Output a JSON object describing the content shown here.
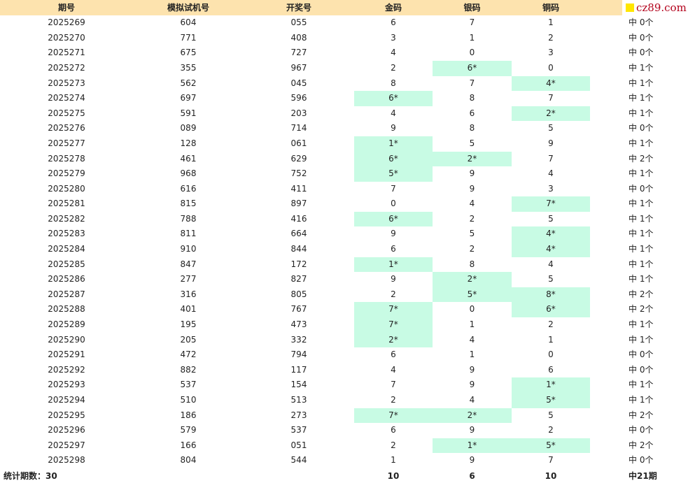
{
  "header": {
    "columns": [
      "期号",
      "模拟试机号",
      "开奖号",
      "金码",
      "银码",
      "铜码"
    ],
    "logo": "cz89.com"
  },
  "table": {
    "rows": [
      [
        "2025269",
        "604",
        "055",
        "6",
        "7",
        "1",
        "中 0个"
      ],
      [
        "2025270",
        "771",
        "408",
        "3",
        "1",
        "2",
        "中 0个"
      ],
      [
        "2025271",
        "675",
        "727",
        "4",
        "0",
        "3",
        "中 0个"
      ],
      [
        "2025272",
        "355",
        "967",
        "2",
        "6*",
        "0",
        "中 1个"
      ],
      [
        "2025273",
        "562",
        "045",
        "8",
        "7",
        "4*",
        "中 1个"
      ],
      [
        "2025274",
        "697",
        "596",
        "6*",
        "8",
        "7",
        "中 1个"
      ],
      [
        "2025275",
        "591",
        "203",
        "4",
        "6",
        "2*",
        "中 1个"
      ],
      [
        "2025276",
        "089",
        "714",
        "9",
        "8",
        "5",
        "中 0个"
      ],
      [
        "2025277",
        "128",
        "061",
        "1*",
        "5",
        "9",
        "中 1个"
      ],
      [
        "2025278",
        "461",
        "629",
        "6*",
        "2*",
        "7",
        "中 2个"
      ],
      [
        "2025279",
        "968",
        "752",
        "5*",
        "9",
        "4",
        "中 1个"
      ],
      [
        "2025280",
        "616",
        "411",
        "7",
        "9",
        "3",
        "中 0个"
      ],
      [
        "2025281",
        "815",
        "897",
        "0",
        "4",
        "7*",
        "中 1个"
      ],
      [
        "2025282",
        "788",
        "416",
        "6*",
        "2",
        "5",
        "中 1个"
      ],
      [
        "2025283",
        "811",
        "664",
        "9",
        "5",
        "4*",
        "中 1个"
      ],
      [
        "2025284",
        "910",
        "844",
        "6",
        "2",
        "4*",
        "中 1个"
      ],
      [
        "2025285",
        "847",
        "172",
        "1*",
        "8",
        "4",
        "中 1个"
      ],
      [
        "2025286",
        "277",
        "827",
        "9",
        "2*",
        "5",
        "中 1个"
      ],
      [
        "2025287",
        "316",
        "805",
        "2",
        "5*",
        "8*",
        "中 2个"
      ],
      [
        "2025288",
        "401",
        "767",
        "7*",
        "0",
        "6*",
        "中 2个"
      ],
      [
        "2025289",
        "195",
        "473",
        "7*",
        "1",
        "2",
        "中 1个"
      ],
      [
        "2025290",
        "205",
        "332",
        "2*",
        "4",
        "1",
        "中 1个"
      ],
      [
        "2025291",
        "472",
        "794",
        "6",
        "1",
        "0",
        "中 0个"
      ],
      [
        "2025292",
        "882",
        "117",
        "4",
        "9",
        "6",
        "中 0个"
      ],
      [
        "2025293",
        "537",
        "154",
        "7",
        "9",
        "1*",
        "中 1个"
      ],
      [
        "2025294",
        "510",
        "513",
        "2",
        "4",
        "5*",
        "中 1个"
      ],
      [
        "2025295",
        "186",
        "273",
        "7*",
        "2*",
        "5",
        "中 2个"
      ],
      [
        "2025296",
        "579",
        "537",
        "6",
        "9",
        "2",
        "中 0个"
      ],
      [
        "2025297",
        "166",
        "051",
        "2",
        "1*",
        "5*",
        "中 2个"
      ],
      [
        "2025298",
        "804",
        "544",
        "1",
        "9",
        "7",
        "中 0个"
      ]
    ]
  },
  "footer": {
    "label": "统计期数：30",
    "gold": "10",
    "silver": "6",
    "bronze": "10",
    "total": "中21期"
  }
}
